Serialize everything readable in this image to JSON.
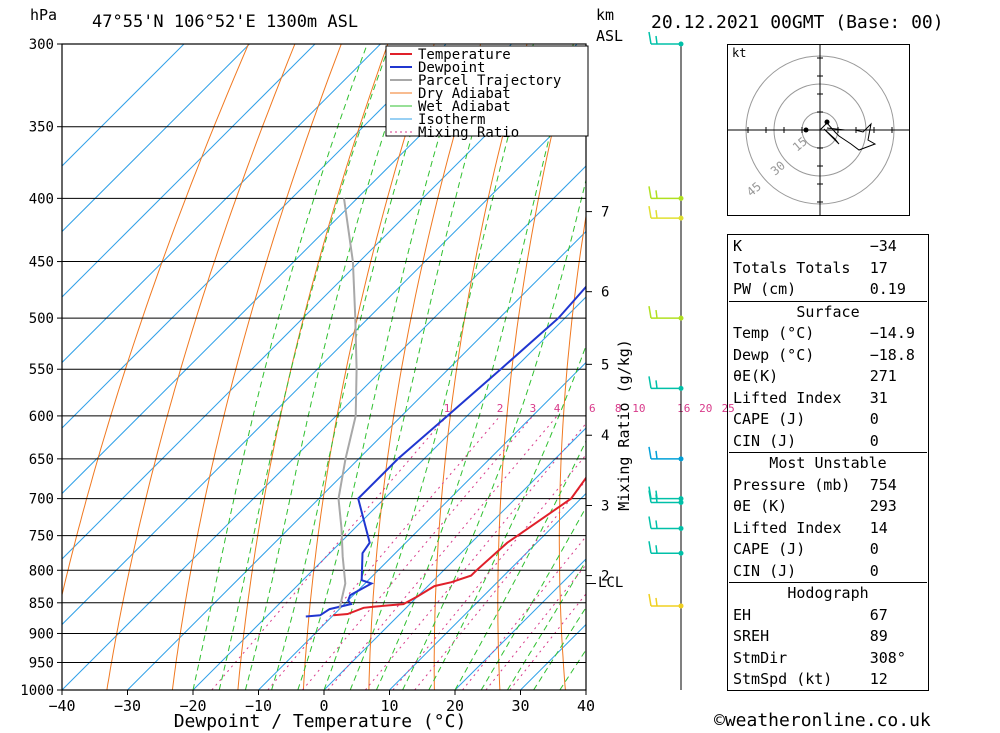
{
  "header": {
    "p_unit": "hPa",
    "location": "47°55'N  106°52'E  1300m  ASL",
    "km": "km",
    "asl": "ASL",
    "datetime": "20.12.2021  00GMT  (Base: 00)"
  },
  "chart_data": {
    "type": "line",
    "xlabel": "Dewpoint / Temperature (°C)",
    "ylabel": "hPa",
    "xlim": [
      -40,
      40
    ],
    "ylim": [
      1000,
      300
    ],
    "x_ticks": [
      "−40",
      "−30",
      "−20",
      "−10",
      "0",
      "10",
      "20",
      "30",
      "40"
    ],
    "pressure_levels": [
      300,
      350,
      400,
      450,
      500,
      550,
      600,
      650,
      700,
      750,
      800,
      850,
      900,
      950,
      1000
    ],
    "km_ticks": [
      "7",
      "6",
      "5",
      "4",
      "3",
      "2"
    ],
    "lcl_label": "LCL",
    "mixing_ratio_axis_label": "Mixing Ratio (g/kg)",
    "mixing_ratio_labels": [
      "1",
      "2",
      "3",
      "4",
      "6",
      "8",
      "10",
      "16",
      "20",
      "25"
    ],
    "series": [
      {
        "name": "Temperature",
        "color": "#e0202a",
        "values": [
          [
            -10,
            870
          ],
          [
            -8,
            868
          ],
          [
            -6.5,
            858
          ],
          [
            -5,
            856
          ],
          [
            -1,
            852
          ],
          [
            0,
            840
          ],
          [
            1,
            824
          ],
          [
            3,
            818
          ],
          [
            5,
            808
          ],
          [
            5,
            800
          ],
          [
            5.5,
            760
          ],
          [
            6,
            750
          ],
          [
            8.5,
            700
          ],
          [
            5,
            600
          ],
          [
            5,
            550
          ],
          [
            1,
            500
          ],
          [
            -7,
            400
          ],
          [
            -13,
            350
          ],
          [
            -17,
            300
          ]
        ]
      },
      {
        "name": "Dewpoint",
        "color": "#2036d0",
        "values": [
          [
            -14,
            872
          ],
          [
            -12,
            870
          ],
          [
            -11.5,
            860
          ],
          [
            -9,
            852
          ],
          [
            -10,
            846
          ],
          [
            -10.5,
            838
          ],
          [
            -9,
            820
          ],
          [
            -11,
            815
          ],
          [
            -15,
            775
          ],
          [
            -15.5,
            760
          ],
          [
            -24,
            700
          ],
          [
            -24,
            650
          ],
          [
            -23,
            600
          ],
          [
            -22,
            550
          ],
          [
            -21,
            500
          ],
          [
            -22,
            450
          ],
          [
            -22,
            400
          ],
          [
            -20,
            370
          ],
          [
            -22,
            350
          ],
          [
            -22,
            300
          ]
        ]
      },
      {
        "name": "Parcel Trajectory",
        "color": "#a8a8a8",
        "values": [
          [
            -10,
            860
          ],
          [
            -13,
            820
          ],
          [
            -17.5,
            780
          ],
          [
            -22,
            740
          ],
          [
            -27,
            700
          ],
          [
            -32,
            650
          ],
          [
            -37,
            600
          ],
          [
            -44,
            550
          ],
          [
            -52,
            500
          ],
          [
            -61,
            450
          ],
          [
            -72,
            400
          ]
        ]
      },
      {
        "name": "Dry Adiabat",
        "color": "#f07820",
        "values": []
      },
      {
        "name": "Wet Adiabat",
        "color": "#30c030",
        "values": []
      },
      {
        "name": "Isotherm",
        "color": "#30a0e8",
        "values": []
      },
      {
        "name": "Mixing Ratio",
        "color": "#d83a8a",
        "values": []
      }
    ]
  },
  "wind_profile": {
    "color": "#00c0a8",
    "barbs": [
      {
        "p": 300,
        "color": "#00c0a8"
      },
      {
        "p": 400,
        "color": "#b0e020"
      },
      {
        "p": 415,
        "color": "#e0e030"
      },
      {
        "p": 500,
        "color": "#b0e020"
      },
      {
        "p": 570,
        "color": "#00c0a8"
      },
      {
        "p": 650,
        "color": "#00a0d8"
      },
      {
        "p": 700,
        "color": "#00c0a8"
      },
      {
        "p": 705,
        "color": "#00c0a8"
      },
      {
        "p": 740,
        "color": "#00c0a8"
      },
      {
        "p": 775,
        "color": "#00c0a8"
      },
      {
        "p": 855,
        "color": "#f0d020"
      }
    ]
  },
  "hodograph": {
    "unit": "kt",
    "ring_labels": [
      "15",
      "30",
      "45"
    ]
  },
  "indices": {
    "k_label": "K",
    "k_value": "−34",
    "tt_label": "Totals Totals",
    "tt_value": "17",
    "pw_label": "PW (cm)",
    "pw_value": "0.19",
    "surface_title": "Surface",
    "s_temp_label": "Temp (°C)",
    "s_temp_value": "−14.9",
    "s_dewp_label": "Dewp (°C)",
    "s_dewp_value": "−18.8",
    "s_theta_label": "θE(K)",
    "s_theta_value": "271",
    "s_li_label": "Lifted Index",
    "s_li_value": "31",
    "s_cape_label": "CAPE (J)",
    "s_cape_value": "0",
    "s_cin_label": "CIN (J)",
    "s_cin_value": "0",
    "mu_title": "Most Unstable",
    "mu_p_label": "Pressure (mb)",
    "mu_p_value": "754",
    "mu_theta_label": "θE (K)",
    "mu_theta_value": "293",
    "mu_li_label": "Lifted Index",
    "mu_li_value": "14",
    "mu_cape_label": "CAPE (J)",
    "mu_cape_value": "0",
    "mu_cin_label": "CIN (J)",
    "mu_cin_value": "0",
    "hodo_title": "Hodograph",
    "eh_label": "EH",
    "eh_value": "67",
    "sreh_label": "SREH",
    "sreh_value": "89",
    "stmdir_label": "StmDir",
    "stmdir_value": "308°",
    "stmspd_label": "StmSpd (kt)",
    "stmspd_value": "12"
  },
  "footer": {
    "copyright": "©weatheronline.co.uk"
  }
}
